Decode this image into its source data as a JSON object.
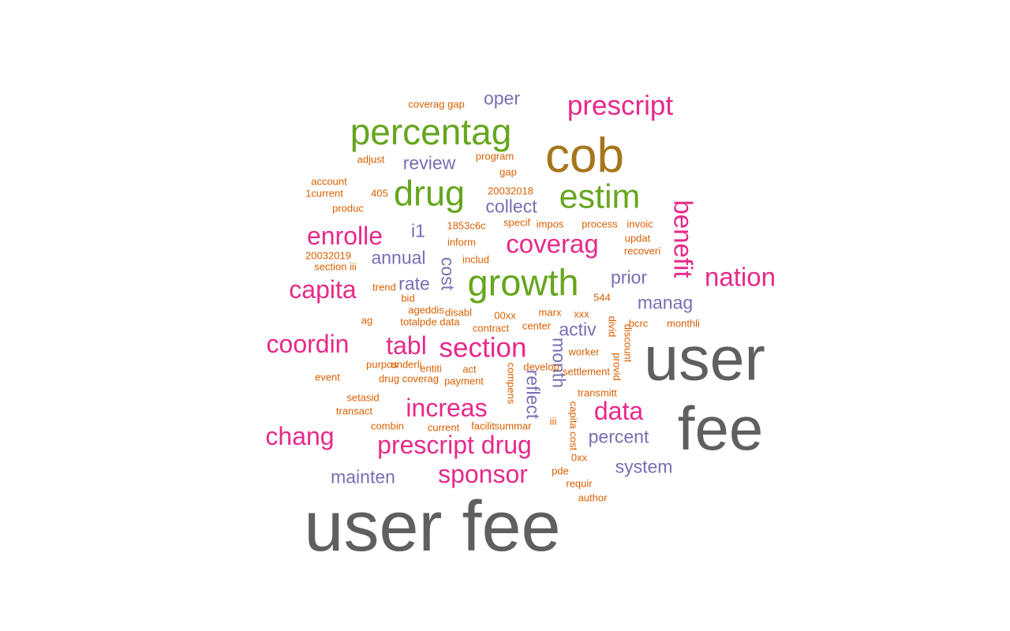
{
  "palette": {
    "gray": "#5f5f5f",
    "gold": "#a6761d",
    "green": "#66a61e",
    "pink": "#e7298a",
    "purple": "#7570b3",
    "orange": "#d95f02",
    "teal": "#1b9e77"
  },
  "words": [
    {
      "text": "user fee",
      "freq": 100,
      "color": "gray"
    },
    {
      "text": "user",
      "freq": 87,
      "color": "gray"
    },
    {
      "text": "fee",
      "freq": 86,
      "color": "gray"
    },
    {
      "text": "cob",
      "freq": 68,
      "color": "gold"
    },
    {
      "text": "growth",
      "freq": 50,
      "color": "green"
    },
    {
      "text": "percentag",
      "freq": 49,
      "color": "green"
    },
    {
      "text": "drug",
      "freq": 48,
      "color": "green"
    },
    {
      "text": "estim",
      "freq": 46,
      "color": "green"
    },
    {
      "text": "prescript",
      "freq": 37,
      "color": "pink"
    },
    {
      "text": "section",
      "freq": 37,
      "color": "pink"
    },
    {
      "text": "coverag",
      "freq": 34,
      "color": "pink"
    },
    {
      "text": "benefit",
      "freq": 34,
      "color": "pink"
    },
    {
      "text": "nation",
      "freq": 34,
      "color": "pink"
    },
    {
      "text": "enrolle",
      "freq": 33,
      "color": "pink"
    },
    {
      "text": "capita",
      "freq": 33,
      "color": "pink"
    },
    {
      "text": "coordin",
      "freq": 33,
      "color": "pink"
    },
    {
      "text": "tabl",
      "freq": 33,
      "color": "pink"
    },
    {
      "text": "increas",
      "freq": 33,
      "color": "pink"
    },
    {
      "text": "data",
      "freq": 33,
      "color": "pink"
    },
    {
      "text": "chang",
      "freq": 33,
      "color": "pink"
    },
    {
      "text": "prescript drug",
      "freq": 33,
      "color": "pink"
    },
    {
      "text": "sponsor",
      "freq": 33,
      "color": "pink"
    },
    {
      "text": "oper",
      "freq": 22,
      "color": "purple"
    },
    {
      "text": "review",
      "freq": 22,
      "color": "purple"
    },
    {
      "text": "collect",
      "freq": 22,
      "color": "purple"
    },
    {
      "text": "i1",
      "freq": 22,
      "color": "purple"
    },
    {
      "text": "annual",
      "freq": 22,
      "color": "purple"
    },
    {
      "text": "cost",
      "freq": 22,
      "color": "purple"
    },
    {
      "text": "rate",
      "freq": 22,
      "color": "purple"
    },
    {
      "text": "prior",
      "freq": 22,
      "color": "purple"
    },
    {
      "text": "manag",
      "freq": 22,
      "color": "purple"
    },
    {
      "text": "activ",
      "freq": 22,
      "color": "purple"
    },
    {
      "text": "month",
      "freq": 22,
      "color": "purple"
    },
    {
      "text": "reflect",
      "freq": 22,
      "color": "purple"
    },
    {
      "text": "percent",
      "freq": 22,
      "color": "purple"
    },
    {
      "text": "system",
      "freq": 22,
      "color": "purple"
    },
    {
      "text": "mainten",
      "freq": 22,
      "color": "purple"
    },
    {
      "text": "coverag gap",
      "freq": 11,
      "color": "orange"
    },
    {
      "text": "adjust",
      "freq": 11,
      "color": "orange"
    },
    {
      "text": "program",
      "freq": 11,
      "color": "orange"
    },
    {
      "text": "gap",
      "freq": 11,
      "color": "orange"
    },
    {
      "text": "account",
      "freq": 11,
      "color": "orange"
    },
    {
      "text": "1current",
      "freq": 11,
      "color": "orange"
    },
    {
      "text": "405",
      "freq": 11,
      "color": "orange"
    },
    {
      "text": "produc",
      "freq": 11,
      "color": "orange"
    },
    {
      "text": "20032018",
      "freq": 11,
      "color": "orange"
    },
    {
      "text": "1853c6c",
      "freq": 11,
      "color": "orange"
    },
    {
      "text": "specif",
      "freq": 11,
      "color": "orange"
    },
    {
      "text": "impos",
      "freq": 11,
      "color": "orange"
    },
    {
      "text": "process",
      "freq": 11,
      "color": "orange"
    },
    {
      "text": "invoic",
      "freq": 11,
      "color": "orange"
    },
    {
      "text": "updat",
      "freq": 11,
      "color": "orange"
    },
    {
      "text": "recoveri",
      "freq": 11,
      "color": "orange"
    },
    {
      "text": "inform",
      "freq": 11,
      "color": "orange"
    },
    {
      "text": "20032019",
      "freq": 11,
      "color": "orange"
    },
    {
      "text": "section iii",
      "freq": 11,
      "color": "orange"
    },
    {
      "text": "includ",
      "freq": 11,
      "color": "orange"
    },
    {
      "text": "trend",
      "freq": 11,
      "color": "orange"
    },
    {
      "text": "bid",
      "freq": 11,
      "color": "orange"
    },
    {
      "text": "ageddis",
      "freq": 11,
      "color": "orange"
    },
    {
      "text": "disabl",
      "freq": 11,
      "color": "orange"
    },
    {
      "text": "00xx",
      "freq": 11,
      "color": "orange"
    },
    {
      "text": "marx",
      "freq": 11,
      "color": "orange"
    },
    {
      "text": "xxx",
      "freq": 11,
      "color": "orange"
    },
    {
      "text": "544",
      "freq": 11,
      "color": "orange"
    },
    {
      "text": "ag",
      "freq": 11,
      "color": "orange"
    },
    {
      "text": "totalpde data",
      "freq": 11,
      "color": "orange"
    },
    {
      "text": "contract",
      "freq": 11,
      "color": "orange"
    },
    {
      "text": "center",
      "freq": 11,
      "color": "orange"
    },
    {
      "text": "bcrc",
      "freq": 11,
      "color": "orange"
    },
    {
      "text": "monthli",
      "freq": 11,
      "color": "orange"
    },
    {
      "text": "divid",
      "freq": 11,
      "color": "orange"
    },
    {
      "text": "discount",
      "freq": 11,
      "color": "orange"
    },
    {
      "text": "worker",
      "freq": 11,
      "color": "orange"
    },
    {
      "text": "purpos",
      "freq": 11,
      "color": "orange"
    },
    {
      "text": "underli",
      "freq": 11,
      "color": "orange"
    },
    {
      "text": "entiti",
      "freq": 11,
      "color": "orange"
    },
    {
      "text": "act",
      "freq": 11,
      "color": "orange"
    },
    {
      "text": "settlement",
      "freq": 11,
      "color": "orange"
    },
    {
      "text": "provid",
      "freq": 11,
      "color": "orange"
    },
    {
      "text": "event",
      "freq": 11,
      "color": "orange"
    },
    {
      "text": "drug coverag",
      "freq": 11,
      "color": "orange"
    },
    {
      "text": "payment",
      "freq": 11,
      "color": "orange"
    },
    {
      "text": "compens",
      "freq": 11,
      "color": "orange"
    },
    {
      "text": "setasid",
      "freq": 11,
      "color": "orange"
    },
    {
      "text": "transmitt",
      "freq": 11,
      "color": "orange"
    },
    {
      "text": "transact",
      "freq": 11,
      "color": "orange"
    },
    {
      "text": "capita cost",
      "freq": 11,
      "color": "orange"
    },
    {
      "text": "combin",
      "freq": 11,
      "color": "orange"
    },
    {
      "text": "current",
      "freq": 11,
      "color": "orange"
    },
    {
      "text": "facilit",
      "freq": 11,
      "color": "orange"
    },
    {
      "text": "summar",
      "freq": 11,
      "color": "orange"
    },
    {
      "text": "iii",
      "freq": 11,
      "color": "orange"
    },
    {
      "text": "0xx",
      "freq": 11,
      "color": "orange"
    },
    {
      "text": "pde",
      "freq": 11,
      "color": "orange"
    },
    {
      "text": "requir",
      "freq": 11,
      "color": "orange"
    },
    {
      "text": "author",
      "freq": 11,
      "color": "orange"
    },
    {
      "text": "develop",
      "freq": 11,
      "color": "orange"
    },
    {
      "text": "9",
      "freq": 11,
      "color": "orange"
    }
  ]
}
